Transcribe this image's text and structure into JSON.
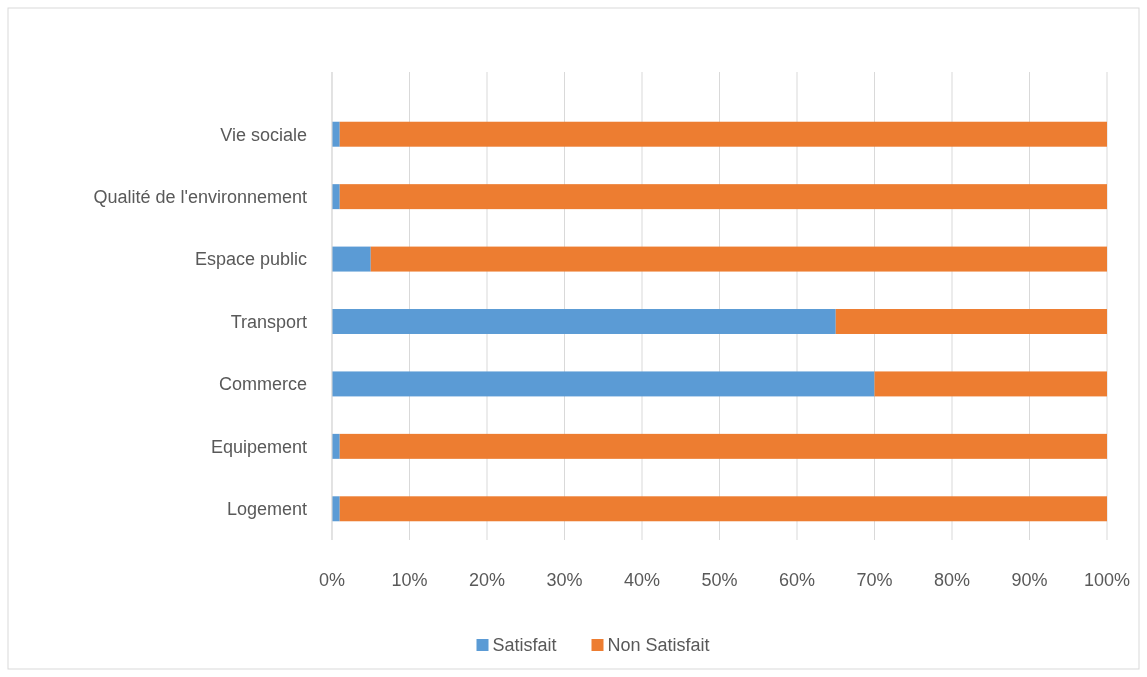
{
  "chart_data": {
    "type": "bar",
    "orientation": "horizontal",
    "stacked": true,
    "categories": [
      "Vie sociale",
      "Qualité de l'environnement",
      "Espace public",
      "Transport",
      "Commerce",
      "Equipement",
      "Logement"
    ],
    "series": [
      {
        "name": "Satisfait",
        "color": "#5b9bd5",
        "values": [
          1,
          1,
          5,
          65,
          70,
          1,
          1
        ]
      },
      {
        "name": "Non Satisfait",
        "color": "#ed7d31",
        "values": [
          99,
          99,
          95,
          35,
          30,
          99,
          99
        ]
      }
    ],
    "xlim": [
      0,
      100
    ],
    "xticks": [
      {
        "value": 0,
        "label": "0%"
      },
      {
        "value": 10,
        "label": "10%"
      },
      {
        "value": 20,
        "label": "20%"
      },
      {
        "value": 30,
        "label": "30%"
      },
      {
        "value": 40,
        "label": "40%"
      },
      {
        "value": 50,
        "label": "50%"
      },
      {
        "value": 60,
        "label": "60%"
      },
      {
        "value": 70,
        "label": "70%"
      },
      {
        "value": 80,
        "label": "80%"
      },
      {
        "value": 90,
        "label": "90%"
      },
      {
        "value": 100,
        "label": "100%"
      }
    ],
    "grid": "x",
    "legend": "bottom"
  }
}
